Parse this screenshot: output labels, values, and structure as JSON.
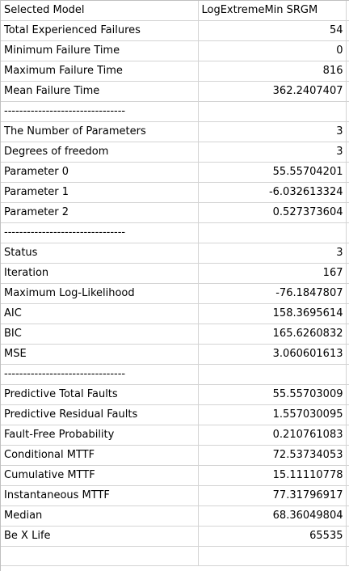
{
  "rows": [
    {
      "label": "Selected Model",
      "value": "LogExtremeMin SRGM",
      "type": "text"
    },
    {
      "label": "Total Experienced Failures",
      "value": "54",
      "type": "num"
    },
    {
      "label": "Minimum Failure Time",
      "value": "0",
      "type": "num"
    },
    {
      "label": "Maximum Failure Time",
      "value": "816",
      "type": "num"
    },
    {
      "label": "Mean Failure Time",
      "value": "362.2407407",
      "type": "num"
    },
    {
      "label": "--------------------------------",
      "value": "",
      "type": "num"
    },
    {
      "label": "The Number of Parameters",
      "value": "3",
      "type": "num"
    },
    {
      "label": "Degrees of freedom",
      "value": "3",
      "type": "num"
    },
    {
      "label": "Parameter 0",
      "value": "55.55704201",
      "type": "num"
    },
    {
      "label": "Parameter 1",
      "value": "-6.032613324",
      "type": "num"
    },
    {
      "label": "Parameter 2",
      "value": "0.527373604",
      "type": "num"
    },
    {
      "label": "--------------------------------",
      "value": "",
      "type": "num"
    },
    {
      "label": "Status",
      "value": "3",
      "type": "num"
    },
    {
      "label": "Iteration",
      "value": "167",
      "type": "num"
    },
    {
      "label": "Maximum Log-Likelihood",
      "value": "-76.1847807",
      "type": "num"
    },
    {
      "label": "AIC",
      "value": "158.3695614",
      "type": "num"
    },
    {
      "label": "BIC",
      "value": "165.6260832",
      "type": "num"
    },
    {
      "label": "MSE",
      "value": "3.060601613",
      "type": "num"
    },
    {
      "label": "--------------------------------",
      "value": "",
      "type": "num"
    },
    {
      "label": "Predictive Total Faults",
      "value": "55.55703009",
      "type": "num"
    },
    {
      "label": "Predictive Residual Faults",
      "value": "1.557030095",
      "type": "num"
    },
    {
      "label": "Fault-Free Probability",
      "value": "0.210761083",
      "type": "num"
    },
    {
      "label": "Conditional MTTF",
      "value": "72.53734053",
      "type": "num"
    },
    {
      "label": "Cumulative MTTF",
      "value": "15.11110778",
      "type": "num"
    },
    {
      "label": "Instantaneous MTTF",
      "value": "77.31796917",
      "type": "num"
    },
    {
      "label": "Median",
      "value": "68.36049804",
      "type": "num"
    },
    {
      "label": "Be X Life",
      "value": "65535",
      "type": "num"
    },
    {
      "label": "",
      "value": "",
      "type": "num"
    }
  ]
}
